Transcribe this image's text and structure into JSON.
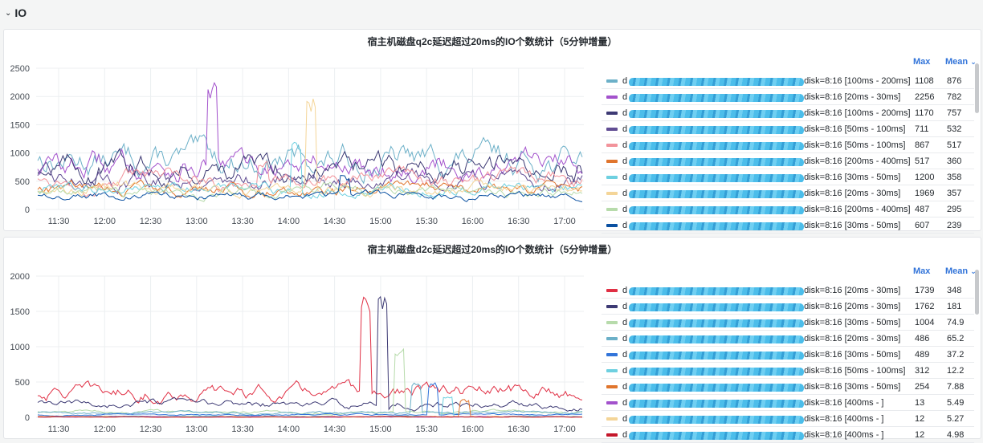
{
  "row": {
    "title": "IO",
    "chevron_icon": "chevron-down-icon"
  },
  "legend_headers": {
    "max": "Max",
    "mean": "Mean"
  },
  "panels": [
    {
      "title": "宿主机磁盘q2c延迟超过20ms的IO个数统计（5分钟增量）",
      "chart_data": {
        "type": "line",
        "title": "宿主机磁盘q2c延迟超过20ms的IO个数统计（5分钟增量）",
        "x_ticks": [
          "11:30",
          "12:00",
          "12:30",
          "13:00",
          "13:30",
          "14:00",
          "14:30",
          "15:00",
          "15:30",
          "16:00",
          "16:30",
          "17:00"
        ],
        "y_ticks": [
          0,
          500,
          1000,
          1500,
          2000,
          2500
        ],
        "ylim": [
          0,
          2500
        ],
        "grid": true,
        "legend_placement": "right",
        "series": [
          {
            "name": "d",
            "suffix": "disk=8:16 [100ms - 200ms]",
            "color": "#6cb0c8",
            "max": "1108",
            "mean": "876"
          },
          {
            "name": "d",
            "suffix": "disk=8:16 [20ms - 30ms]",
            "color": "#a352cc",
            "max": "2256",
            "mean": "782"
          },
          {
            "name": "d",
            "suffix": "disk=8:16 [100ms - 200ms]",
            "color": "#3d3a74",
            "max": "1170",
            "mean": "757"
          },
          {
            "name": "d",
            "suffix": "disk=8:16 [50ms - 100ms]",
            "color": "#614d93",
            "max": "711",
            "mean": "532"
          },
          {
            "name": "d",
            "suffix": "disk=8:16 [50ms - 100ms]",
            "color": "#f2939b",
            "max": "867",
            "mean": "517"
          },
          {
            "name": "d",
            "suffix": "disk=8:16 [200ms - 400ms]",
            "color": "#e0752d",
            "max": "517",
            "mean": "360"
          },
          {
            "name": "d",
            "suffix": "disk=8:16 [30ms - 50ms]",
            "color": "#6ed0e0",
            "max": "1200",
            "mean": "358"
          },
          {
            "name": "d",
            "suffix": "disk=8:16 [20ms - 30ms]",
            "color": "#f4d598",
            "max": "1969",
            "mean": "357"
          },
          {
            "name": "d",
            "suffix": "disk=8:16 [200ms - 400ms]",
            "color": "#b7dbab",
            "max": "487",
            "mean": "295"
          },
          {
            "name": "d",
            "suffix": "disk=8:16 [30ms - 50ms]",
            "color": "#0a50a1",
            "max": "607",
            "mean": "239"
          }
        ]
      }
    },
    {
      "title": "宿主机磁盘d2c延迟超过20ms的IO个数统计（5分钟增量）",
      "chart_data": {
        "type": "line",
        "title": "宿主机磁盘d2c延迟超过20ms的IO个数统计（5分钟增量）",
        "x_ticks": [
          "11:30",
          "12:00",
          "12:30",
          "13:00",
          "13:30",
          "14:00",
          "14:30",
          "15:00",
          "15:30",
          "16:00",
          "16:30",
          "17:00"
        ],
        "y_ticks": [
          0,
          500,
          1000,
          1500,
          2000
        ],
        "ylim": [
          0,
          2000
        ],
        "grid": true,
        "legend_placement": "right",
        "series": [
          {
            "name": "d",
            "suffix": "disk=8:16 [20ms - 30ms]",
            "color": "#e02f44",
            "max": "1739",
            "mean": "348"
          },
          {
            "name": "d",
            "suffix": "disk=8:16 [20ms - 30ms]",
            "color": "#3d3a74",
            "max": "1762",
            "mean": "181"
          },
          {
            "name": "d",
            "suffix": "disk=8:16 [30ms - 50ms]",
            "color": "#b7dbab",
            "max": "1004",
            "mean": "74.9"
          },
          {
            "name": "d",
            "suffix": "disk=8:16 [20ms - 30ms]",
            "color": "#6cb0c8",
            "max": "486",
            "mean": "65.2"
          },
          {
            "name": "d",
            "suffix": "disk=8:16 [30ms - 50ms]",
            "color": "#3274d9",
            "max": "489",
            "mean": "37.2"
          },
          {
            "name": "d",
            "suffix": "disk=8:16 [50ms - 100ms]",
            "color": "#6ed0e0",
            "max": "312",
            "mean": "12.2"
          },
          {
            "name": "d",
            "suffix": "disk=8:16 [30ms - 50ms]",
            "color": "#e0752d",
            "max": "254",
            "mean": "7.88"
          },
          {
            "name": "d",
            "suffix": "disk=8:16 [400ms - ]",
            "color": "#a352cc",
            "max": "13",
            "mean": "5.49"
          },
          {
            "name": "d",
            "suffix": "disk=8:16 [400ms - ]",
            "color": "#f4d598",
            "max": "12",
            "mean": "5.27"
          },
          {
            "name": "d",
            "suffix": "disk=8:16 [400ms - ]",
            "color": "#c4162a",
            "max": "12",
            "mean": "4.98"
          }
        ]
      }
    }
  ]
}
